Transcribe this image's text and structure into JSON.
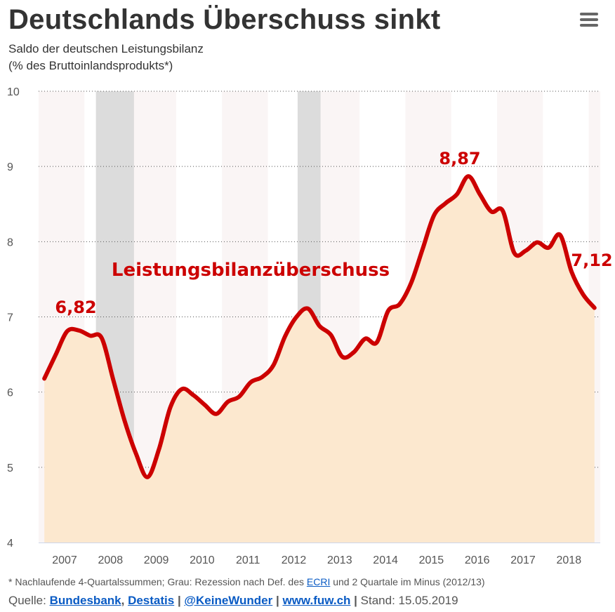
{
  "header": {
    "title": "Deutschlands Überschuss sinkt",
    "subtitle_line1": "Saldo der deutschen Leistungsbilanz",
    "subtitle_line2": "(% des Bruttoinlandsprodukts*)",
    "menu_icon": "hamburger-menu-icon"
  },
  "chart_data": {
    "type": "area",
    "ylim": [
      4,
      10
    ],
    "yticks": [
      "4",
      "5",
      "6",
      "7",
      "8",
      "9",
      "10"
    ],
    "xticks": [
      "2007",
      "2008",
      "2009",
      "2010",
      "2011",
      "2012",
      "2013",
      "2014",
      "2015",
      "2016",
      "2017",
      "2018"
    ],
    "grid": "horizontal dotted",
    "series": [
      {
        "name": "Leistungsbilanzüberschuss",
        "frequency": "quarterly",
        "start": "2007-Q1",
        "values": [
          6.18,
          6.5,
          6.81,
          6.82,
          6.75,
          6.72,
          6.17,
          5.62,
          5.18,
          4.87,
          5.24,
          5.8,
          6.04,
          5.96,
          5.83,
          5.71,
          5.87,
          5.94,
          6.13,
          6.2,
          6.36,
          6.74,
          7.0,
          7.11,
          6.88,
          6.76,
          6.47,
          6.53,
          6.71,
          6.66,
          7.08,
          7.17,
          7.45,
          7.9,
          8.35,
          8.51,
          8.63,
          8.87,
          8.63,
          8.4,
          8.41,
          7.85,
          7.88,
          7.99,
          7.92,
          8.09,
          7.6,
          7.3,
          7.12
        ]
      }
    ],
    "recessions": [
      [
        2008.25,
        2009.08
      ],
      [
        2012.65,
        2013.15
      ]
    ],
    "annotations": {
      "label_2007": "6,82",
      "label_2016": "8,87",
      "label_2019": "7,12",
      "series_label": "Leistungsbilanzüberschuss"
    },
    "colors": {
      "line": "#cc0000",
      "fill": "#fce8cf",
      "recession": "#dcdcdc",
      "year_band": "#faf5f5"
    }
  },
  "footer": {
    "note_before": "* Nachlaufende 4-Quartalssummen; Grau: Rezession nach Def. des ",
    "note_link": "ECRI",
    "note_after": " und 2 Quartale im Minus (2012/13)",
    "source_label": "Quelle: ",
    "src1": "Bundesbank",
    "comma": ", ",
    "src2": "Destatis",
    "sep": " | ",
    "twitter": "@KeineWunder",
    "site": "www.fuw.ch",
    "stand": "Stand: 15.05.2019"
  }
}
